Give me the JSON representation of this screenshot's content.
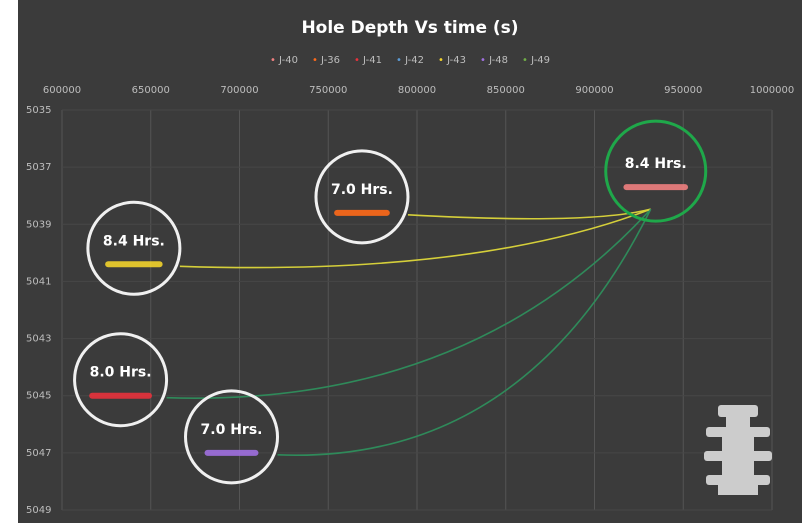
{
  "chart_data": {
    "type": "line",
    "title": "Hole Depth Vs time (s)",
    "xlim": [
      600000,
      1000000
    ],
    "xticks": [
      600000,
      650000,
      700000,
      750000,
      800000,
      850000,
      900000,
      950000,
      1000000
    ],
    "ylim": [
      5035,
      5049
    ],
    "yticks": [
      5035,
      5037,
      5039,
      5041,
      5043,
      5045,
      5047,
      5049
    ],
    "y_inverted": true,
    "x_axis_position": "top",
    "grid": true,
    "legend": "top",
    "series": [
      {
        "name": "J-40",
        "color": "#f08080",
        "x": [
          918000,
          951000
        ],
        "values": [
          5037.7,
          5037.7
        ],
        "annotation": "8.4 Hrs.",
        "annotation_color": "#1fa84a"
      },
      {
        "name": "J-36",
        "color": "#ff6a1a",
        "x": [
          755000,
          783000
        ],
        "values": [
          5038.6,
          5038.6
        ],
        "annotation": "7.0 Hrs."
      },
      {
        "name": "J-41",
        "color": "#e8323c",
        "x": [
          617000,
          649000
        ],
        "values": [
          5045,
          5045
        ],
        "annotation": "8.0 Hrs."
      },
      {
        "name": "J-42",
        "color": "#5b9bd5",
        "x": [],
        "values": []
      },
      {
        "name": "J-43",
        "color": "#f2d32c",
        "x": [
          626000,
          655000
        ],
        "values": [
          5040.4,
          5040.4
        ],
        "annotation": "8.4 Hrs."
      },
      {
        "name": "J-48",
        "color": "#a070e0",
        "x": [
          682000,
          709000
        ],
        "values": [
          5047,
          5047
        ],
        "annotation": "7.0 Hrs."
      },
      {
        "name": "J-49",
        "color": "#70ad47",
        "x": [],
        "values": []
      }
    ]
  }
}
